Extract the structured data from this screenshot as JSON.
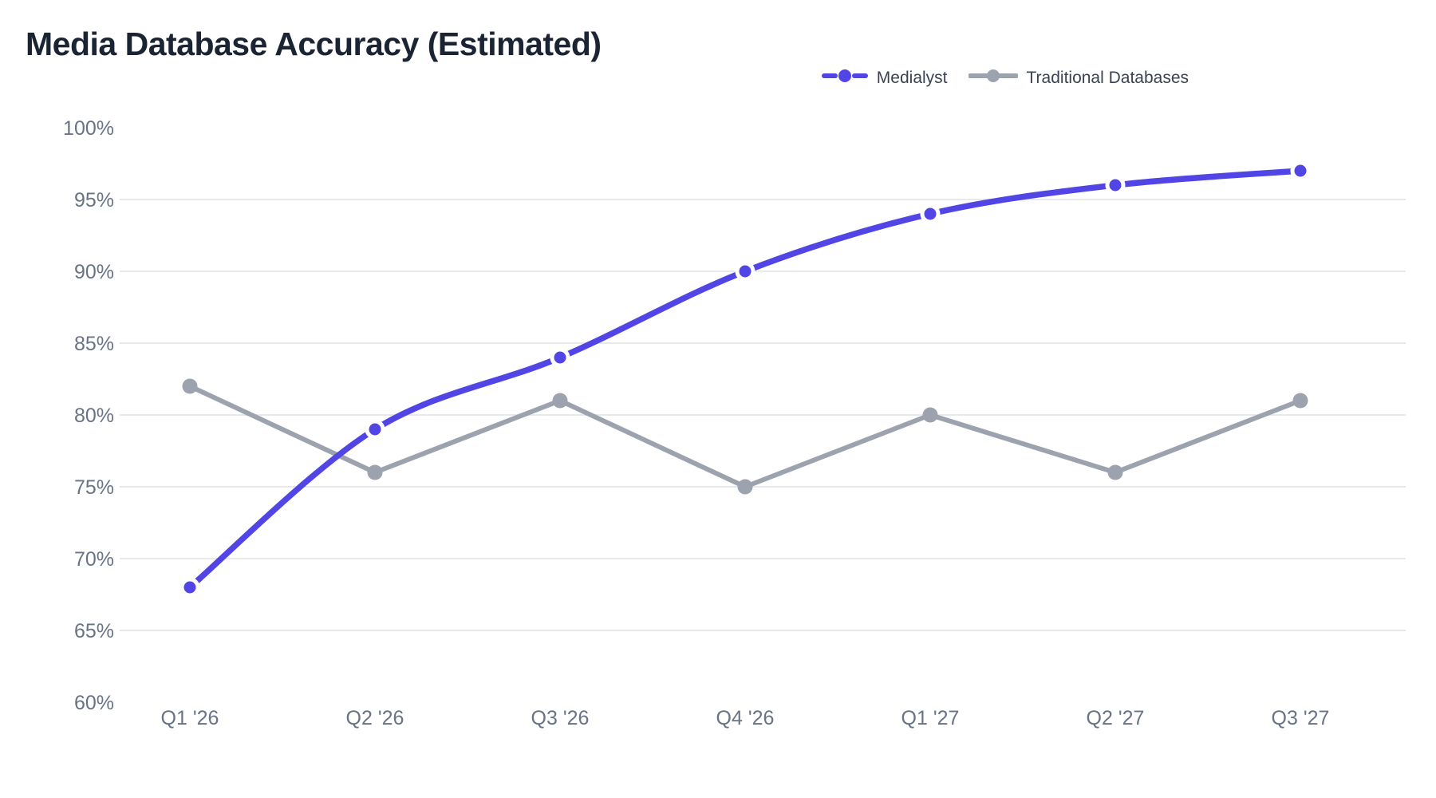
{
  "title": "Media Database Accuracy (Estimated)",
  "legend": {
    "items": [
      {
        "label": "Medialyst"
      },
      {
        "label": "Traditional Databases"
      }
    ]
  },
  "chart_data": {
    "type": "line",
    "title": "Media Database Accuracy (Estimated)",
    "xlabel": "",
    "ylabel": "",
    "categories": [
      "Q1 '26",
      "Q2 '26",
      "Q3 '26",
      "Q4 '26",
      "Q1 '27",
      "Q2 '27",
      "Q3 '27"
    ],
    "series": [
      {
        "name": "Medialyst",
        "values": [
          68,
          79,
          84,
          90,
          94,
          96,
          97
        ],
        "color": "#5245e6",
        "line_style": "dashed",
        "curve": "smooth",
        "marker": "circle-white-ring"
      },
      {
        "name": "Traditional Databases",
        "values": [
          82,
          76,
          81,
          75,
          80,
          76,
          81
        ],
        "color": "#9ca3af",
        "line_style": "solid",
        "curve": "straight",
        "marker": "circle"
      }
    ],
    "ylim": [
      60,
      100
    ],
    "ytick_values": [
      60,
      65,
      70,
      75,
      80,
      85,
      90,
      95,
      100
    ],
    "ytick_labels": [
      "60%",
      "65%",
      "70%",
      "75%",
      "80%",
      "85%",
      "90%",
      "95%",
      "100%"
    ],
    "grid_values": [
      65,
      70,
      75,
      80,
      85,
      90,
      95
    ],
    "grid": "horizontal",
    "legend_position": "top-right",
    "unit": "%"
  },
  "colors": {
    "background": "#ffffff",
    "title_text": "#1b2433",
    "axis_label": "#697386",
    "gridline": "#e7e9ec",
    "legend_text": "#3a4354",
    "series_medialyst": "#5245e6",
    "series_traditional": "#9ca3af"
  }
}
